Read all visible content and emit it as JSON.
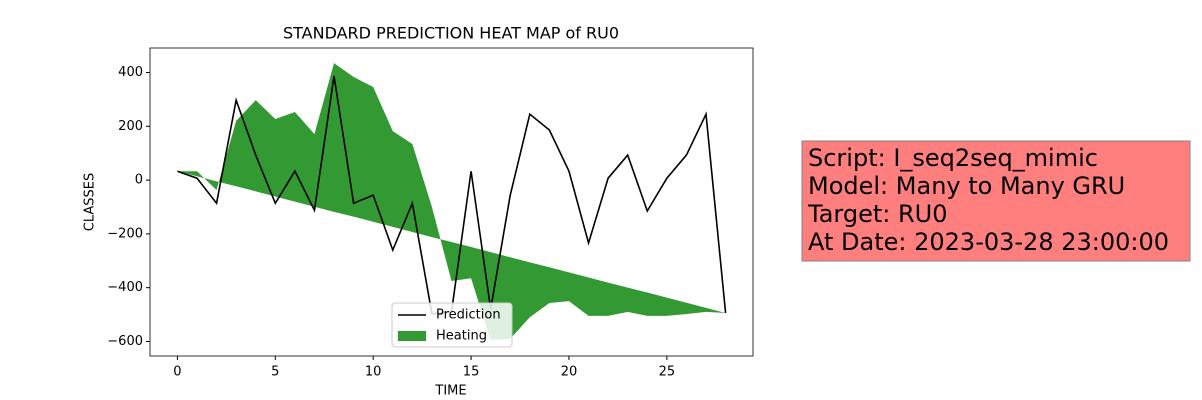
{
  "chart_data": {
    "type": "line-area",
    "title": "STANDARD PREDICTION HEAT MAP of RU0",
    "xlabel": "TIME",
    "ylabel": "CLASSES",
    "x": [
      0,
      1,
      2,
      3,
      4,
      5,
      6,
      7,
      8,
      9,
      10,
      11,
      12,
      13,
      14,
      15,
      16,
      17,
      18,
      19,
      20,
      21,
      22,
      23,
      24,
      25,
      26,
      27,
      28
    ],
    "series": [
      {
        "name": "Prediction",
        "color": "#000000",
        "kind": "line",
        "values": [
          33,
          7,
          -86,
          297,
          93,
          -86,
          33,
          -112,
          387,
          -86,
          -56,
          -260,
          -86,
          -497,
          -490,
          33,
          -480,
          -56,
          245,
          186,
          33,
          -234,
          7,
          93,
          -115,
          7,
          93,
          245,
          -494
        ]
      },
      {
        "name": "Heating",
        "color": "#339933",
        "kind": "area",
        "values": [
          33,
          33,
          -37,
          220,
          297,
          227,
          253,
          171,
          435,
          383,
          346,
          182,
          134,
          -100,
          -375,
          -365,
          -595,
          -590,
          -510,
          -457,
          -450,
          -505,
          -505,
          -490,
          -505,
          -505,
          -498,
          -490,
          -494
        ],
        "baseline": [
          33,
          14,
          -5,
          -23,
          -42,
          -61,
          -80,
          -99,
          -118,
          -136,
          -155,
          -174,
          -193,
          -212,
          -230,
          -249,
          -268,
          -287,
          -306,
          -324,
          -343,
          -362,
          -381,
          -400,
          -418,
          -437,
          -456,
          -475,
          -494
        ]
      }
    ],
    "xlim": [
      -1.4,
      29.4
    ],
    "ylim": [
      -654,
      491
    ],
    "xticks": [
      0,
      5,
      10,
      15,
      20,
      25
    ],
    "yticks": [
      {
        "value": -600,
        "label": "−600"
      },
      {
        "value": -400,
        "label": "−400"
      },
      {
        "value": -200,
        "label": "−200"
      },
      0,
      200,
      400
    ],
    "legend": "lower center",
    "annotation_lines": [
      "Script: I_seq2seq_mimic",
      "Model: Many to Many GRU",
      "Target: RU0",
      "At Date: 2023-03-28 23:00:00"
    ]
  }
}
